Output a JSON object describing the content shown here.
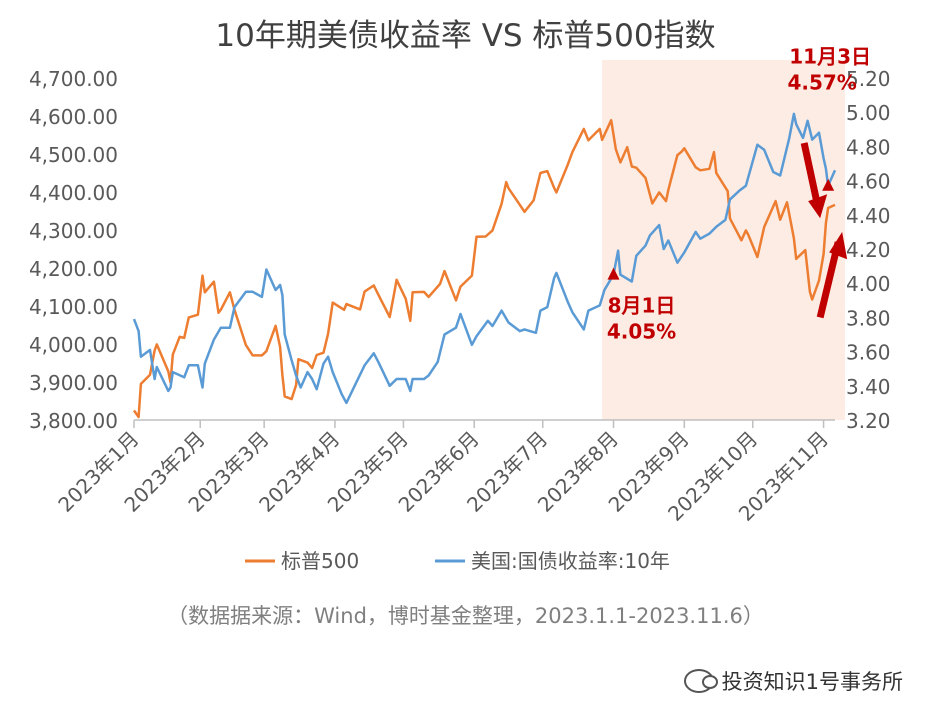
{
  "chart_data": {
    "type": "line",
    "title": "10年期美债收益率 VS 标普500指数",
    "source_note": "（数据据来源：Wind，博时基金整理，2023.1.1-2023.11.6）",
    "x_tick_labels": [
      "2023年1月",
      "2023年2月",
      "2023年3月",
      "2023年4月",
      "2023年5月",
      "2023年6月",
      "2023年7月",
      "2023年8月",
      "2023年9月",
      "2023年10月",
      "2023年11月"
    ],
    "x_range": [
      "2023-01-03",
      "2023-11-06"
    ],
    "left_axis": {
      "series": "标普500",
      "ylim": [
        3800,
        4700
      ],
      "ticks": [
        3800,
        3900,
        4000,
        4100,
        4200,
        4300,
        4400,
        4500,
        4600,
        4700
      ],
      "tick_labels": [
        "3,800.00",
        "3,900.00",
        "4,000.00",
        "4,100.00",
        "4,200.00",
        "4,300.00",
        "4,400.00",
        "4,500.00",
        "4,600.00",
        "4,700.00"
      ]
    },
    "right_axis": {
      "series": "美国:国债收益率:10年",
      "ylim": [
        3.2,
        5.2
      ],
      "ticks": [
        3.2,
        3.4,
        3.6,
        3.8,
        4.0,
        4.2,
        4.4,
        4.6,
        4.8,
        5.0,
        5.2
      ],
      "tick_labels": [
        "3.20",
        "3.40",
        "3.60",
        "3.80",
        "4.00",
        "4.20",
        "4.40",
        "4.60",
        "4.80",
        "5.00",
        "5.20"
      ]
    },
    "highlight_range": [
      "2023-07-27",
      "2023-11-06"
    ],
    "series": [
      {
        "name": "标普500",
        "axis": "left",
        "color": "#ed7d31",
        "points": [
          [
            "2023-01-03",
            3825
          ],
          [
            "2023-01-05",
            3808
          ],
          [
            "2023-01-06",
            3895
          ],
          [
            "2023-01-10",
            3919
          ],
          [
            "2023-01-12",
            3983
          ],
          [
            "2023-01-13",
            3999
          ],
          [
            "2023-01-18",
            3928
          ],
          [
            "2023-01-19",
            3899
          ],
          [
            "2023-01-20",
            3972
          ],
          [
            "2023-01-23",
            4019
          ],
          [
            "2023-01-25",
            4016
          ],
          [
            "2023-01-27",
            4070
          ],
          [
            "2023-01-31",
            4077
          ],
          [
            "2023-02-02",
            4180
          ],
          [
            "2023-02-03",
            4136
          ],
          [
            "2023-02-07",
            4164
          ],
          [
            "2023-02-09",
            4082
          ],
          [
            "2023-02-10",
            4090
          ],
          [
            "2023-02-14",
            4136
          ],
          [
            "2023-02-16",
            4090
          ],
          [
            "2023-02-21",
            3997
          ],
          [
            "2023-02-24",
            3970
          ],
          [
            "2023-02-28",
            3970
          ],
          [
            "2023-03-02",
            3981
          ],
          [
            "2023-03-06",
            4048
          ],
          [
            "2023-03-08",
            3992
          ],
          [
            "2023-03-09",
            3918
          ],
          [
            "2023-03-10",
            3862
          ],
          [
            "2023-03-13",
            3855
          ],
          [
            "2023-03-15",
            3892
          ],
          [
            "2023-03-16",
            3960
          ],
          [
            "2023-03-20",
            3951
          ],
          [
            "2023-03-22",
            3937
          ],
          [
            "2023-03-24",
            3971
          ],
          [
            "2023-03-27",
            3977
          ],
          [
            "2023-03-29",
            4027
          ],
          [
            "2023-03-31",
            4109
          ],
          [
            "2023-04-05",
            4090
          ],
          [
            "2023-04-06",
            4105
          ],
          [
            "2023-04-12",
            4091
          ],
          [
            "2023-04-14",
            4138
          ],
          [
            "2023-04-18",
            4154
          ],
          [
            "2023-04-20",
            4130
          ],
          [
            "2023-04-25",
            4071
          ],
          [
            "2023-04-27",
            4135
          ],
          [
            "2023-04-28",
            4169
          ],
          [
            "2023-05-02",
            4119
          ],
          [
            "2023-05-04",
            4061
          ],
          [
            "2023-05-05",
            4136
          ],
          [
            "2023-05-10",
            4137
          ],
          [
            "2023-05-12",
            4124
          ],
          [
            "2023-05-17",
            4158
          ],
          [
            "2023-05-19",
            4192
          ],
          [
            "2023-05-24",
            4115
          ],
          [
            "2023-05-26",
            4151
          ],
          [
            "2023-05-31",
            4180
          ],
          [
            "2023-06-02",
            4282
          ],
          [
            "2023-06-06",
            4283
          ],
          [
            "2023-06-09",
            4299
          ],
          [
            "2023-06-13",
            4369
          ],
          [
            "2023-06-15",
            4426
          ],
          [
            "2023-06-16",
            4410
          ],
          [
            "2023-06-21",
            4366
          ],
          [
            "2023-06-23",
            4348
          ],
          [
            "2023-06-27",
            4378
          ],
          [
            "2023-06-30",
            4450
          ],
          [
            "2023-07-03",
            4455
          ],
          [
            "2023-07-06",
            4411
          ],
          [
            "2023-07-07",
            4399
          ],
          [
            "2023-07-12",
            4472
          ],
          [
            "2023-07-14",
            4505
          ],
          [
            "2023-07-19",
            4566
          ],
          [
            "2023-07-21",
            4536
          ],
          [
            "2023-07-26",
            4566
          ],
          [
            "2023-07-27",
            4537
          ],
          [
            "2023-07-31",
            4589
          ],
          [
            "2023-08-02",
            4513
          ],
          [
            "2023-08-04",
            4478
          ],
          [
            "2023-08-07",
            4518
          ],
          [
            "2023-08-09",
            4467
          ],
          [
            "2023-08-11",
            4464
          ],
          [
            "2023-08-15",
            4437
          ],
          [
            "2023-08-18",
            4370
          ],
          [
            "2023-08-21",
            4399
          ],
          [
            "2023-08-24",
            4376
          ],
          [
            "2023-08-25",
            4405
          ],
          [
            "2023-08-29",
            4497
          ],
          [
            "2023-08-31",
            4507
          ],
          [
            "2023-09-01",
            4515
          ],
          [
            "2023-09-06",
            4465
          ],
          [
            "2023-09-08",
            4457
          ],
          [
            "2023-09-12",
            4461
          ],
          [
            "2023-09-14",
            4505
          ],
          [
            "2023-09-15",
            4450
          ],
          [
            "2023-09-20",
            4402
          ],
          [
            "2023-09-21",
            4330
          ],
          [
            "2023-09-26",
            4273
          ],
          [
            "2023-09-28",
            4299
          ],
          [
            "2023-09-29",
            4288
          ],
          [
            "2023-10-03",
            4229
          ],
          [
            "2023-10-06",
            4308
          ],
          [
            "2023-10-11",
            4376
          ],
          [
            "2023-10-13",
            4327
          ],
          [
            "2023-10-16",
            4373
          ],
          [
            "2023-10-19",
            4278
          ],
          [
            "2023-10-20",
            4224
          ],
          [
            "2023-10-24",
            4247
          ],
          [
            "2023-10-26",
            4137
          ],
          [
            "2023-10-27",
            4117
          ],
          [
            "2023-10-30",
            4167
          ],
          [
            "2023-11-01",
            4237
          ],
          [
            "2023-11-02",
            4318
          ],
          [
            "2023-11-03",
            4358
          ],
          [
            "2023-11-06",
            4366
          ]
        ]
      },
      {
        "name": "美国:国债收益率:10年",
        "axis": "right",
        "color": "#5b9bd5",
        "points": [
          [
            "2023-01-03",
            3.79
          ],
          [
            "2023-01-05",
            3.72
          ],
          [
            "2023-01-06",
            3.57
          ],
          [
            "2023-01-10",
            3.61
          ],
          [
            "2023-01-12",
            3.44
          ],
          [
            "2023-01-13",
            3.51
          ],
          [
            "2023-01-18",
            3.37
          ],
          [
            "2023-01-19",
            3.39
          ],
          [
            "2023-01-20",
            3.48
          ],
          [
            "2023-01-25",
            3.45
          ],
          [
            "2023-01-27",
            3.52
          ],
          [
            "2023-01-31",
            3.52
          ],
          [
            "2023-02-02",
            3.39
          ],
          [
            "2023-02-03",
            3.53
          ],
          [
            "2023-02-07",
            3.67
          ],
          [
            "2023-02-10",
            3.74
          ],
          [
            "2023-02-14",
            3.74
          ],
          [
            "2023-02-16",
            3.86
          ],
          [
            "2023-02-21",
            3.95
          ],
          [
            "2023-02-24",
            3.95
          ],
          [
            "2023-02-28",
            3.92
          ],
          [
            "2023-03-02",
            4.08
          ],
          [
            "2023-03-06",
            3.96
          ],
          [
            "2023-03-08",
            3.99
          ],
          [
            "2023-03-09",
            3.93
          ],
          [
            "2023-03-10",
            3.7
          ],
          [
            "2023-03-13",
            3.55
          ],
          [
            "2023-03-15",
            3.46
          ],
          [
            "2023-03-17",
            3.39
          ],
          [
            "2023-03-20",
            3.48
          ],
          [
            "2023-03-22",
            3.44
          ],
          [
            "2023-03-24",
            3.38
          ],
          [
            "2023-03-27",
            3.53
          ],
          [
            "2023-03-29",
            3.57
          ],
          [
            "2023-03-31",
            3.48
          ],
          [
            "2023-04-04",
            3.35
          ],
          [
            "2023-04-06",
            3.3
          ],
          [
            "2023-04-10",
            3.41
          ],
          [
            "2023-04-14",
            3.52
          ],
          [
            "2023-04-18",
            3.59
          ],
          [
            "2023-04-20",
            3.54
          ],
          [
            "2023-04-25",
            3.4
          ],
          [
            "2023-04-28",
            3.44
          ],
          [
            "2023-05-02",
            3.44
          ],
          [
            "2023-05-04",
            3.37
          ],
          [
            "2023-05-05",
            3.44
          ],
          [
            "2023-05-10",
            3.44
          ],
          [
            "2023-05-12",
            3.46
          ],
          [
            "2023-05-16",
            3.54
          ],
          [
            "2023-05-19",
            3.7
          ],
          [
            "2023-05-24",
            3.74
          ],
          [
            "2023-05-26",
            3.82
          ],
          [
            "2023-05-31",
            3.64
          ],
          [
            "2023-06-02",
            3.69
          ],
          [
            "2023-06-07",
            3.78
          ],
          [
            "2023-06-09",
            3.75
          ],
          [
            "2023-06-13",
            3.84
          ],
          [
            "2023-06-16",
            3.77
          ],
          [
            "2023-06-21",
            3.72
          ],
          [
            "2023-06-23",
            3.73
          ],
          [
            "2023-06-28",
            3.71
          ],
          [
            "2023-06-30",
            3.84
          ],
          [
            "2023-07-03",
            3.86
          ],
          [
            "2023-07-06",
            4.03
          ],
          [
            "2023-07-07",
            4.06
          ],
          [
            "2023-07-12",
            3.89
          ],
          [
            "2023-07-14",
            3.83
          ],
          [
            "2023-07-19",
            3.73
          ],
          [
            "2023-07-21",
            3.84
          ],
          [
            "2023-07-26",
            3.87
          ],
          [
            "2023-07-28",
            3.96
          ],
          [
            "2023-08-01",
            4.05
          ],
          [
            "2023-08-03",
            4.19
          ],
          [
            "2023-08-04",
            4.05
          ],
          [
            "2023-08-09",
            4.01
          ],
          [
            "2023-08-11",
            4.16
          ],
          [
            "2023-08-15",
            4.22
          ],
          [
            "2023-08-17",
            4.28
          ],
          [
            "2023-08-21",
            4.34
          ],
          [
            "2023-08-23",
            4.2
          ],
          [
            "2023-08-25",
            4.25
          ],
          [
            "2023-08-29",
            4.12
          ],
          [
            "2023-09-01",
            4.18
          ],
          [
            "2023-09-06",
            4.3
          ],
          [
            "2023-09-08",
            4.26
          ],
          [
            "2023-09-12",
            4.29
          ],
          [
            "2023-09-15",
            4.33
          ],
          [
            "2023-09-19",
            4.37
          ],
          [
            "2023-09-21",
            4.49
          ],
          [
            "2023-09-25",
            4.54
          ],
          [
            "2023-09-28",
            4.57
          ],
          [
            "2023-10-03",
            4.81
          ],
          [
            "2023-10-06",
            4.78
          ],
          [
            "2023-10-10",
            4.65
          ],
          [
            "2023-10-13",
            4.63
          ],
          [
            "2023-10-17",
            4.85
          ],
          [
            "2023-10-19",
            4.99
          ],
          [
            "2023-10-20",
            4.93
          ],
          [
            "2023-10-23",
            4.85
          ],
          [
            "2023-10-25",
            4.95
          ],
          [
            "2023-10-27",
            4.84
          ],
          [
            "2023-10-30",
            4.88
          ],
          [
            "2023-11-01",
            4.73
          ],
          [
            "2023-11-02",
            4.67
          ],
          [
            "2023-11-03",
            4.57
          ],
          [
            "2023-11-06",
            4.66
          ]
        ]
      }
    ],
    "annotations": [
      {
        "label_line1": "8月1日",
        "label_line2": "4.05%",
        "date": "2023-08-01",
        "value": 4.05,
        "color": "#c00000"
      },
      {
        "label_line1": "11月3日",
        "label_line2": "4.57%",
        "date": "2023-11-03",
        "value": 4.57,
        "color": "#c00000"
      }
    ],
    "legend": {
      "position": "bottom"
    }
  },
  "watermark": "投资知识1号事务所"
}
